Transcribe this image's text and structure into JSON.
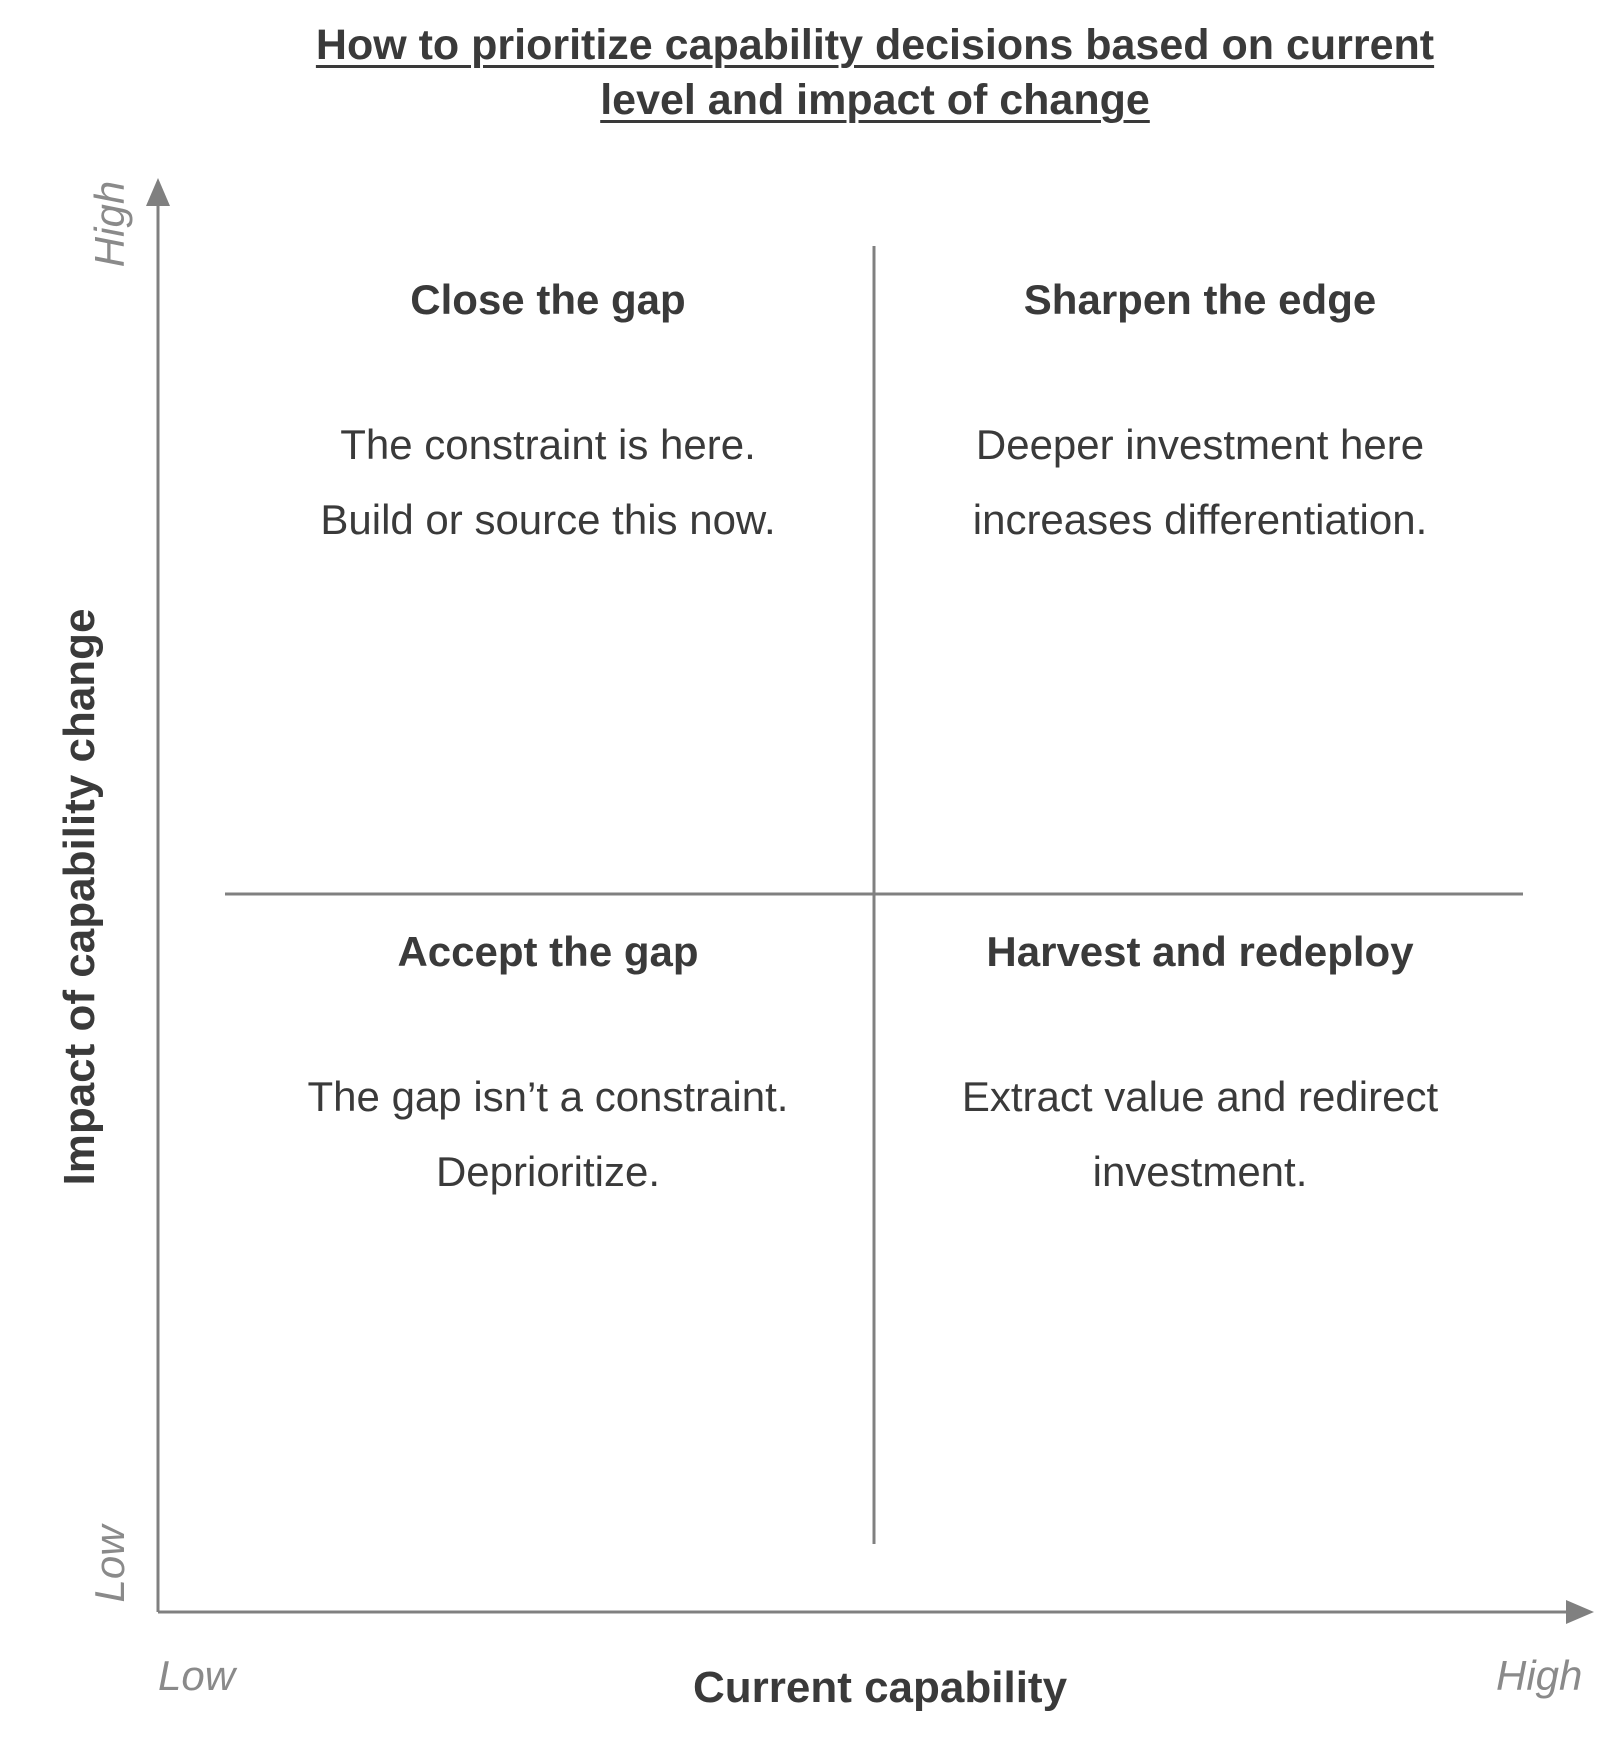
{
  "title": {
    "line1": "How to prioritize capability decisions based on current",
    "line2": "level and impact of change"
  },
  "axes": {
    "x_label": "Current capability",
    "y_label": "Impact of capability change",
    "x_low": "Low",
    "x_high": "High",
    "y_low": "Low",
    "y_high": "High"
  },
  "quadrants": {
    "top_left": {
      "title": "Close the gap",
      "line1": "The constraint is here.",
      "line2": "Build or source this now."
    },
    "top_right": {
      "title": "Sharpen the edge",
      "line1": "Deeper investment here",
      "line2": "increases differentiation."
    },
    "bottom_left": {
      "title": "Accept the gap",
      "line1": "The gap isn’t a constraint.",
      "line2": "Deprioritize."
    },
    "bottom_right": {
      "title": "Harvest and redeploy",
      "line1": "Extract value and redirect",
      "line2": "investment."
    }
  },
  "colors": {
    "text": "#3a3a3a",
    "axis": "#808080",
    "tick_label": "#8a8a8a"
  }
}
